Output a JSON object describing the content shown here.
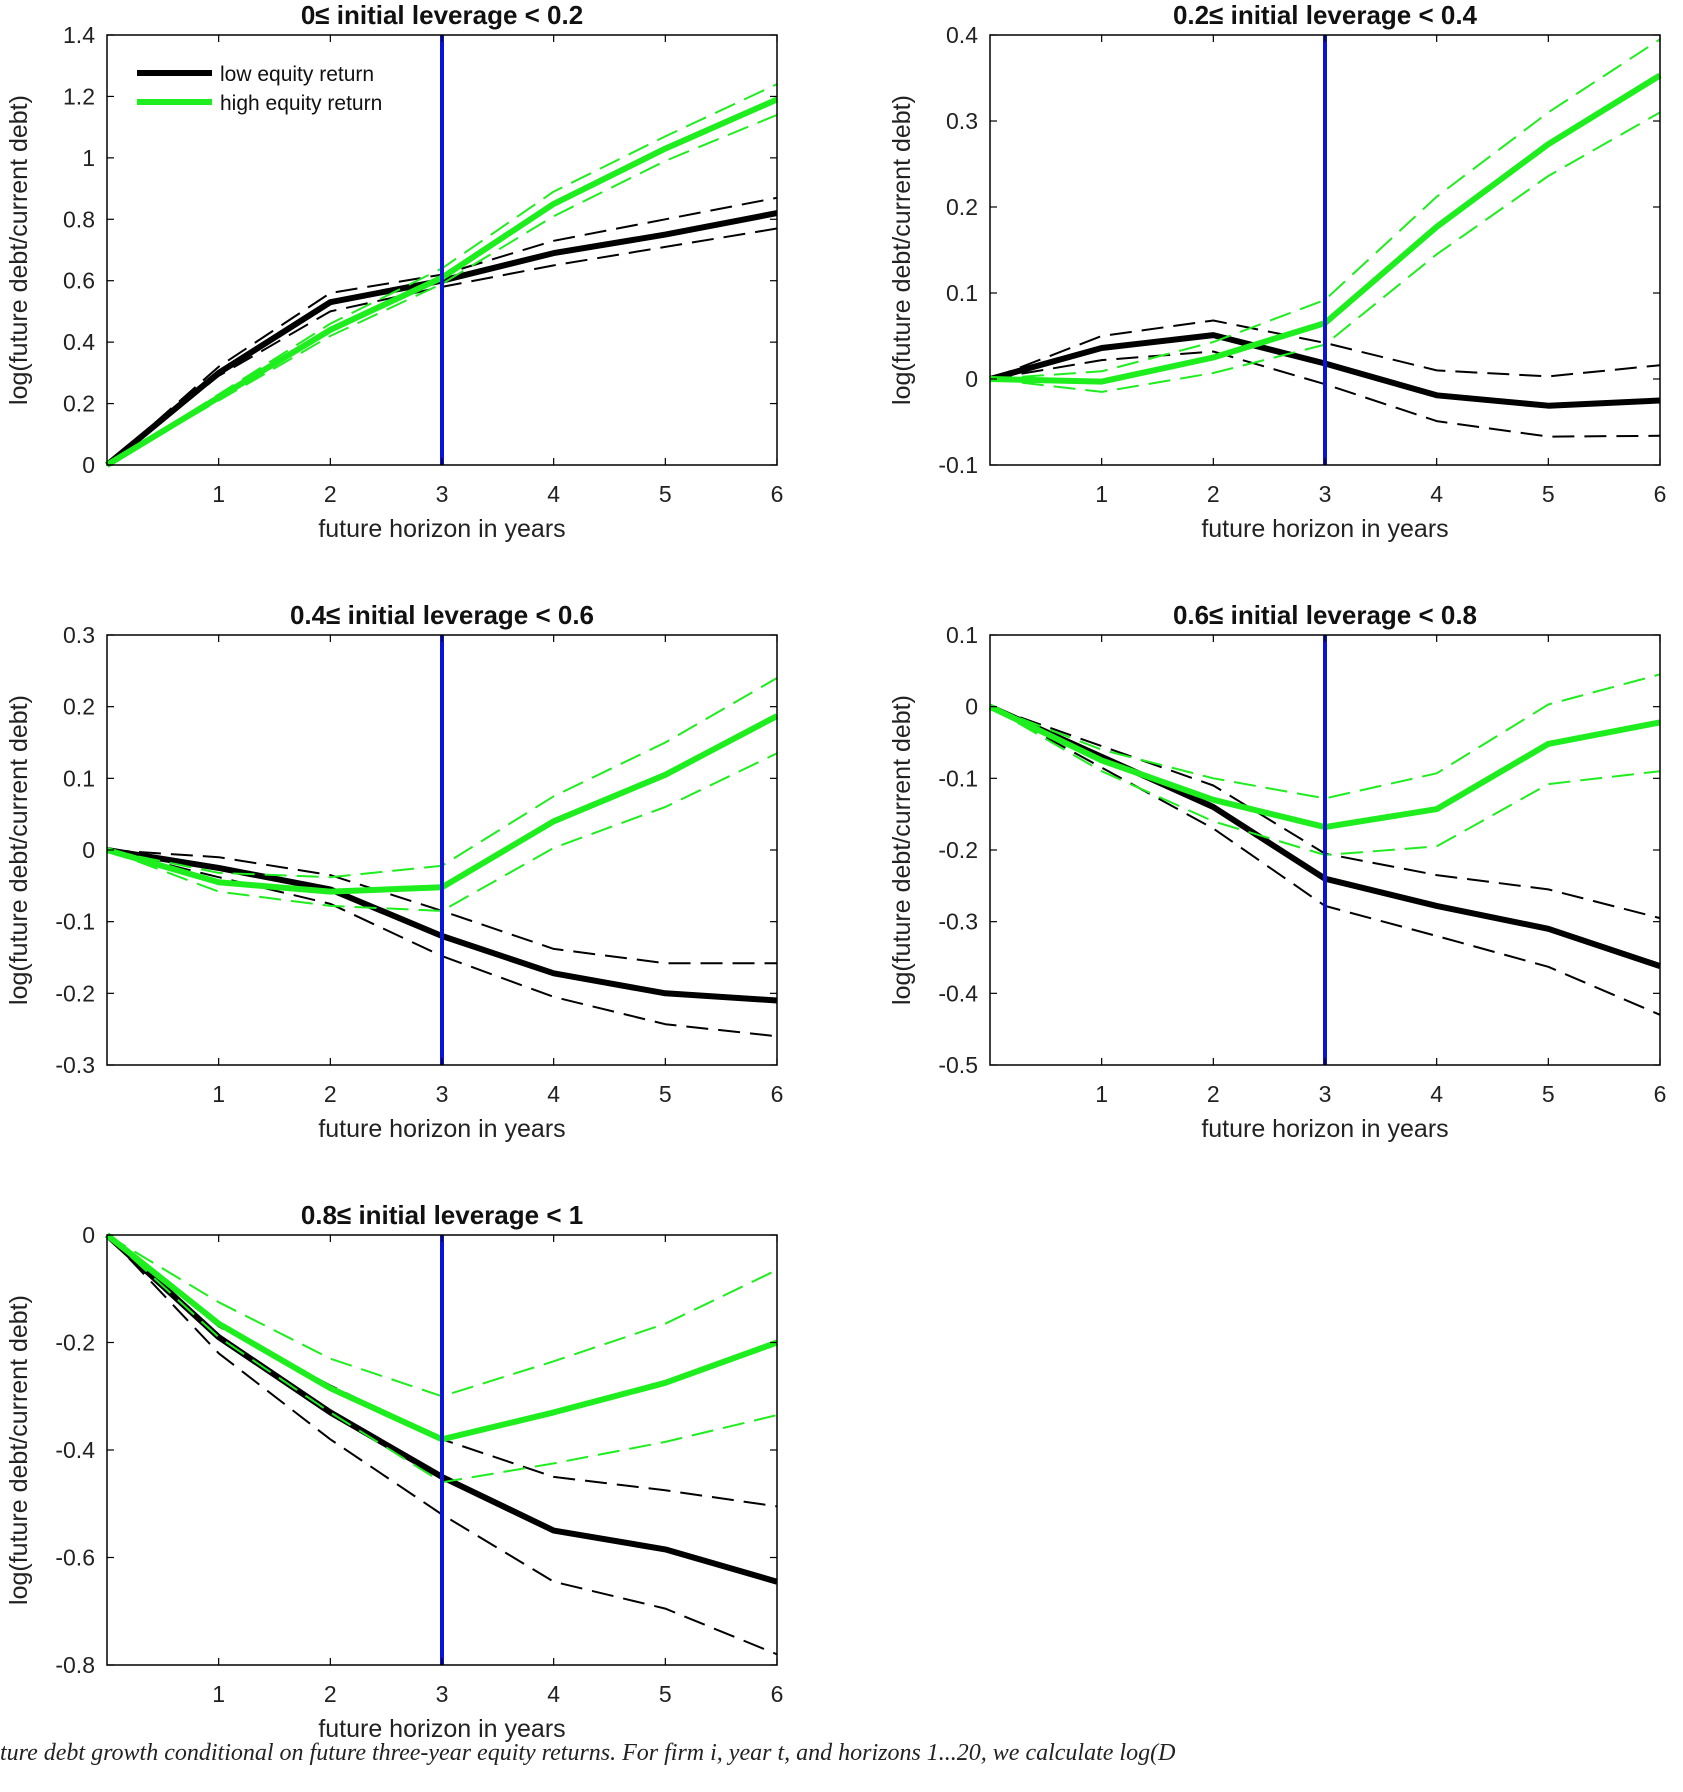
{
  "colors": {
    "low": "#000000",
    "high": "#1eee1e",
    "vline": "#0a14d8",
    "axis": "#000000"
  },
  "legend": {
    "low_label": "low equity return",
    "high_label": "high equity return"
  },
  "caption": "ture debt growth conditional on future three-year equity returns. For firm i, year t, and horizons 1...20, we calculate log(D",
  "chart_data": [
    {
      "type": "line",
      "title": "0≤ initial leverage < 0.2",
      "xlabel": "future horizon in years",
      "ylabel": "log(future debt/current debt)",
      "xlim": [
        0,
        6
      ],
      "ylim": [
        0,
        1.4
      ],
      "xticks": [
        1,
        2,
        3,
        4,
        5,
        6
      ],
      "yticks": [
        0,
        0.2,
        0.4,
        0.6,
        0.8,
        1,
        1.2,
        1.4
      ],
      "ytick_labels": [
        "0",
        "0.2",
        "0.4",
        "0.6",
        "0.8",
        "1",
        "1.2",
        "1.4"
      ],
      "vline": 3,
      "legend": "top-left",
      "x": [
        0,
        1,
        2,
        3,
        4,
        5,
        6
      ],
      "series": [
        {
          "name": "low equity return",
          "color": "black",
          "style": "solid",
          "values": [
            0,
            0.3,
            0.53,
            0.6,
            0.69,
            0.75,
            0.82
          ]
        },
        {
          "color": "black",
          "style": "dashed",
          "values": [
            0,
            0.32,
            0.56,
            0.62,
            0.73,
            0.8,
            0.87
          ]
        },
        {
          "color": "black",
          "style": "dashed",
          "values": [
            0,
            0.29,
            0.5,
            0.58,
            0.65,
            0.71,
            0.77
          ]
        },
        {
          "name": "high equity return",
          "color": "green",
          "style": "solid",
          "values": [
            0,
            0.22,
            0.44,
            0.61,
            0.85,
            1.03,
            1.19
          ]
        },
        {
          "color": "green",
          "style": "dashed",
          "values": [
            0,
            0.23,
            0.46,
            0.64,
            0.89,
            1.07,
            1.24
          ]
        },
        {
          "color": "green",
          "style": "dashed",
          "values": [
            0,
            0.21,
            0.42,
            0.59,
            0.81,
            0.99,
            1.14
          ]
        }
      ]
    },
    {
      "type": "line",
      "title": "0.2≤ initial leverage < 0.4",
      "xlabel": "future horizon in years",
      "ylabel": "log(future debt/current debt)",
      "xlim": [
        0,
        6
      ],
      "ylim": [
        -0.1,
        0.4
      ],
      "xticks": [
        1,
        2,
        3,
        4,
        5,
        6
      ],
      "yticks": [
        -0.1,
        0,
        0.1,
        0.2,
        0.3,
        0.4
      ],
      "ytick_labels": [
        "-0.1",
        "0",
        "0.1",
        "0.2",
        "0.3",
        "0.4"
      ],
      "vline": 3,
      "x": [
        0,
        1,
        2,
        3,
        4,
        5,
        6
      ],
      "series": [
        {
          "color": "black",
          "style": "solid",
          "values": [
            0,
            0.036,
            0.051,
            0.018,
            -0.019,
            -0.031,
            -0.025
          ]
        },
        {
          "color": "black",
          "style": "dashed",
          "values": [
            0,
            0.05,
            0.068,
            0.042,
            0.01,
            0.003,
            0.016
          ]
        },
        {
          "color": "black",
          "style": "dashed",
          "values": [
            0,
            0.022,
            0.032,
            -0.006,
            -0.049,
            -0.067,
            -0.066
          ]
        },
        {
          "color": "green",
          "style": "solid",
          "values": [
            0,
            -0.003,
            0.025,
            0.065,
            0.177,
            0.273,
            0.353
          ]
        },
        {
          "color": "green",
          "style": "dashed",
          "values": [
            0,
            0.009,
            0.043,
            0.092,
            0.212,
            0.31,
            0.395
          ]
        },
        {
          "color": "green",
          "style": "dashed",
          "values": [
            0,
            -0.015,
            0.007,
            0.04,
            0.145,
            0.236,
            0.31
          ]
        }
      ]
    },
    {
      "type": "line",
      "title": "0.4≤ initial leverage < 0.6",
      "xlabel": "future horizon in years",
      "ylabel": "log(future debt/current debt)",
      "xlim": [
        0,
        6
      ],
      "ylim": [
        -0.3,
        0.3
      ],
      "xticks": [
        1,
        2,
        3,
        4,
        5,
        6
      ],
      "yticks": [
        -0.3,
        -0.2,
        -0.1,
        0,
        0.1,
        0.2,
        0.3
      ],
      "ytick_labels": [
        "-0.3",
        "-0.2",
        "-0.1",
        "0",
        "0.1",
        "0.2",
        "0.3"
      ],
      "vline": 3,
      "x": [
        0,
        1,
        2,
        3,
        4,
        5,
        6
      ],
      "series": [
        {
          "color": "black",
          "style": "solid",
          "values": [
            0,
            -0.025,
            -0.055,
            -0.12,
            -0.172,
            -0.2,
            -0.21
          ]
        },
        {
          "color": "black",
          "style": "dashed",
          "values": [
            0,
            -0.01,
            -0.035,
            -0.085,
            -0.138,
            -0.158,
            -0.158
          ]
        },
        {
          "color": "black",
          "style": "dashed",
          "values": [
            0,
            -0.038,
            -0.075,
            -0.148,
            -0.205,
            -0.243,
            -0.26
          ]
        },
        {
          "color": "green",
          "style": "solid",
          "values": [
            0,
            -0.045,
            -0.058,
            -0.052,
            0.04,
            0.105,
            0.187
          ]
        },
        {
          "color": "green",
          "style": "dashed",
          "values": [
            0,
            -0.032,
            -0.038,
            -0.022,
            0.075,
            0.15,
            0.24
          ]
        },
        {
          "color": "green",
          "style": "dashed",
          "values": [
            0,
            -0.058,
            -0.078,
            -0.085,
            0.003,
            0.06,
            0.135
          ]
        }
      ]
    },
    {
      "type": "line",
      "title": "0.6≤ initial leverage < 0.8",
      "xlabel": "future horizon in years",
      "ylabel": "log(future debt/current debt)",
      "xlim": [
        0,
        6
      ],
      "ylim": [
        -0.5,
        0.1
      ],
      "xticks": [
        1,
        2,
        3,
        4,
        5,
        6
      ],
      "yticks": [
        -0.5,
        -0.4,
        -0.3,
        -0.2,
        -0.1,
        0,
        0.1
      ],
      "ytick_labels": [
        "-0.5",
        "-0.4",
        "-0.3",
        "-0.2",
        "-0.1",
        "0",
        "0.1"
      ],
      "vline": 3,
      "x": [
        0,
        1,
        2,
        3,
        4,
        5,
        6
      ],
      "series": [
        {
          "color": "black",
          "style": "solid",
          "values": [
            0,
            -0.07,
            -0.14,
            -0.24,
            -0.278,
            -0.31,
            -0.362
          ]
        },
        {
          "color": "black",
          "style": "dashed",
          "values": [
            0,
            -0.055,
            -0.11,
            -0.205,
            -0.235,
            -0.255,
            -0.295
          ]
        },
        {
          "color": "black",
          "style": "dashed",
          "values": [
            0,
            -0.085,
            -0.17,
            -0.278,
            -0.32,
            -0.363,
            -0.43
          ]
        },
        {
          "color": "green",
          "style": "solid",
          "values": [
            0,
            -0.075,
            -0.13,
            -0.168,
            -0.143,
            -0.052,
            -0.022
          ]
        },
        {
          "color": "green",
          "style": "dashed",
          "values": [
            0,
            -0.06,
            -0.1,
            -0.128,
            -0.093,
            0.003,
            0.045
          ]
        },
        {
          "color": "green",
          "style": "dashed",
          "values": [
            0,
            -0.09,
            -0.16,
            -0.207,
            -0.195,
            -0.108,
            -0.09
          ]
        }
      ]
    },
    {
      "type": "line",
      "title": "0.8≤ initial leverage < 1",
      "xlabel": "future horizon in years",
      "ylabel": "log(future debt/current debt)",
      "xlim": [
        0,
        6
      ],
      "ylim": [
        -0.8,
        0
      ],
      "xticks": [
        1,
        2,
        3,
        4,
        5,
        6
      ],
      "yticks": [
        -0.8,
        -0.6,
        -0.4,
        -0.2,
        0
      ],
      "ytick_labels": [
        "-0.8",
        "-0.6",
        "-0.4",
        "-0.2",
        "0"
      ],
      "vline": 3,
      "x": [
        0,
        1,
        2,
        3,
        4,
        5,
        6
      ],
      "series": [
        {
          "color": "black",
          "style": "solid",
          "values": [
            0,
            -0.19,
            -0.33,
            -0.45,
            -0.55,
            -0.585,
            -0.645
          ]
        },
        {
          "color": "black",
          "style": "dashed",
          "values": [
            0,
            -0.17,
            -0.28,
            -0.38,
            -0.45,
            -0.475,
            -0.505
          ]
        },
        {
          "color": "black",
          "style": "dashed",
          "values": [
            0,
            -0.22,
            -0.38,
            -0.52,
            -0.645,
            -0.695,
            -0.78
          ]
        },
        {
          "color": "green",
          "style": "solid",
          "values": [
            0,
            -0.165,
            -0.285,
            -0.38,
            -0.33,
            -0.275,
            -0.2
          ]
        },
        {
          "color": "green",
          "style": "dashed",
          "values": [
            0,
            -0.125,
            -0.23,
            -0.3,
            -0.235,
            -0.165,
            -0.065
          ]
        },
        {
          "color": "green",
          "style": "dashed",
          "values": [
            0,
            -0.19,
            -0.33,
            -0.46,
            -0.425,
            -0.385,
            -0.335
          ]
        }
      ]
    }
  ]
}
